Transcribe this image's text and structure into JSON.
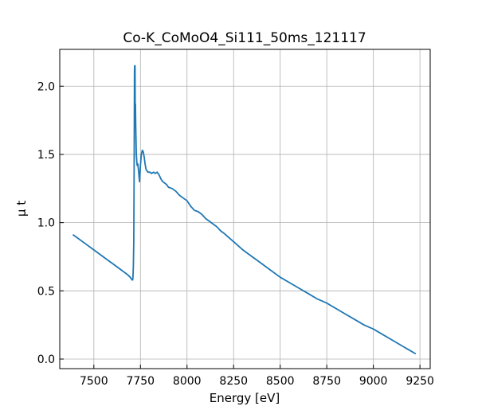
{
  "chart_data": {
    "type": "line",
    "title": "Co-K_CoMoO4_Si111_50ms_121117",
    "xlabel": "Energy [eV]",
    "ylabel": "μ t",
    "xlim": [
      7317,
      9305
    ],
    "ylim": [
      -0.07,
      2.27
    ],
    "xticks": [
      7500,
      7750,
      8000,
      8250,
      8500,
      8750,
      9000,
      9250
    ],
    "xtick_labels": [
      "7500",
      "7750",
      "8000",
      "8250",
      "8500",
      "8750",
      "9000",
      "9250"
    ],
    "yticks": [
      0.0,
      0.5,
      1.0,
      1.5,
      2.0
    ],
    "ytick_labels": [
      "0.0",
      "0.5",
      "1.0",
      "1.5",
      "2.0"
    ],
    "grid": true,
    "legend": "none",
    "series": [
      {
        "color": "#1f77b4",
        "x": [
          7390,
          7450,
          7500,
          7550,
          7600,
          7650,
          7680,
          7695,
          7700,
          7705,
          7708,
          7710,
          7712,
          7714,
          7716,
          7717,
          7718,
          7719,
          7720,
          7721,
          7722,
          7723,
          7725,
          7728,
          7732,
          7736,
          7740,
          7745,
          7750,
          7755,
          7760,
          7765,
          7770,
          7775,
          7780,
          7790,
          7800,
          7810,
          7820,
          7830,
          7840,
          7850,
          7860,
          7870,
          7880,
          7890,
          7900,
          7920,
          7940,
          7960,
          7980,
          8000,
          8020,
          8040,
          8060,
          8080,
          8100,
          8120,
          8140,
          8160,
          8180,
          8200,
          8250,
          8300,
          8350,
          8400,
          8450,
          8500,
          8550,
          8600,
          8650,
          8700,
          8750,
          8800,
          8850,
          8900,
          8950,
          9000,
          9050,
          9100,
          9150,
          9200,
          9225
        ],
        "y": [
          0.91,
          0.85,
          0.8,
          0.75,
          0.7,
          0.65,
          0.62,
          0.6,
          0.59,
          0.58,
          0.58,
          0.6,
          0.68,
          0.85,
          1.3,
          1.75,
          2.1,
          2.15,
          1.95,
          2.15,
          1.75,
          1.87,
          1.7,
          1.5,
          1.42,
          1.43,
          1.38,
          1.3,
          1.42,
          1.5,
          1.53,
          1.52,
          1.48,
          1.43,
          1.39,
          1.37,
          1.37,
          1.36,
          1.37,
          1.36,
          1.37,
          1.35,
          1.32,
          1.3,
          1.29,
          1.28,
          1.26,
          1.25,
          1.23,
          1.2,
          1.18,
          1.16,
          1.12,
          1.09,
          1.08,
          1.06,
          1.03,
          1.01,
          0.99,
          0.97,
          0.94,
          0.92,
          0.86,
          0.8,
          0.75,
          0.7,
          0.65,
          0.6,
          0.56,
          0.52,
          0.48,
          0.44,
          0.41,
          0.37,
          0.33,
          0.29,
          0.25,
          0.22,
          0.18,
          0.14,
          0.1,
          0.06,
          0.04
        ]
      }
    ]
  }
}
